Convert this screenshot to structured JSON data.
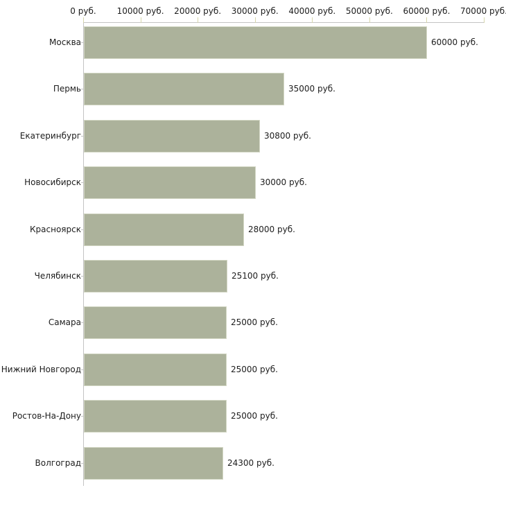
{
  "chart_data": {
    "type": "bar",
    "orientation": "horizontal",
    "title": "",
    "categories": [
      "Москва",
      "Пермь",
      "Екатеринбург",
      "Новосибирск",
      "Красноярск",
      "Челябинск",
      "Самара",
      "Нижний Новгород",
      "Ростов-На-Дону",
      "Волгоград"
    ],
    "values": [
      60000,
      35000,
      30800,
      30000,
      28000,
      25100,
      25000,
      25000,
      25000,
      24300
    ],
    "value_labels": [
      "60000 руб.",
      "35000 руб.",
      "30800 руб.",
      "30000 руб.",
      "28000 руб.",
      "25100 руб.",
      "25000 руб.",
      "25000 руб.",
      "25000 руб.",
      "24300 руб."
    ],
    "x_axis": {
      "position": "top",
      "unit": "руб.",
      "range": [
        0,
        70000
      ],
      "ticks": [
        0,
        10000,
        20000,
        30000,
        40000,
        50000,
        60000,
        70000
      ],
      "tick_labels": [
        "0 руб.",
        "10000 руб.",
        "20000 руб.",
        "30000 руб.",
        "40000 руб.",
        "50000 руб.",
        "60000 руб.",
        "70000 руб."
      ]
    },
    "grid": false,
    "legend": false,
    "colors": {
      "bar": "#acb29b",
      "bar_border": "#d2d6c3",
      "axis": "#c3c3c3",
      "tick": "#d6d6ab",
      "text": "#1c1c1c"
    }
  }
}
